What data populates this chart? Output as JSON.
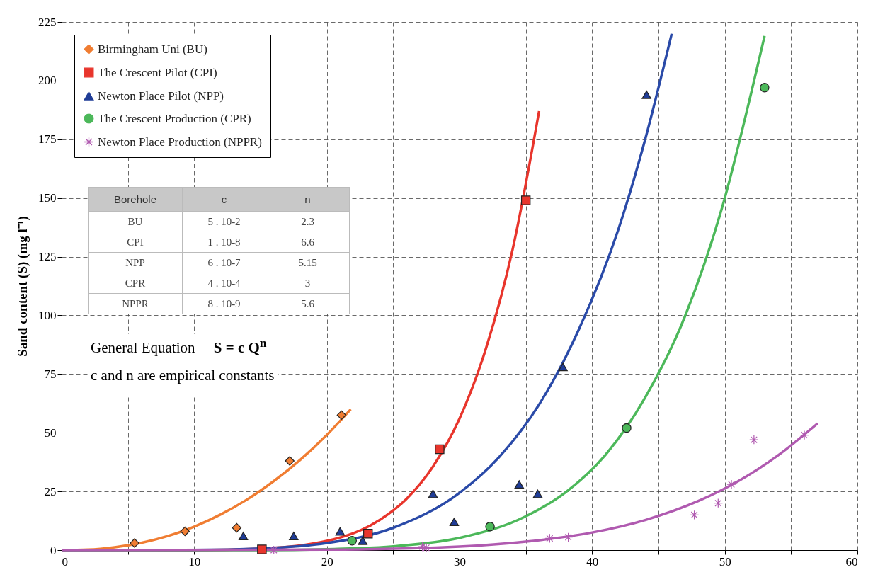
{
  "chart_data": {
    "type": "scatter",
    "ylabel": "Sand content (S) (mg l⁻¹)",
    "xlim": [
      0,
      60
    ],
    "ylim": [
      0,
      225
    ],
    "xticks": [
      0,
      {
        "value": 5,
        "label": null
      },
      10,
      {
        "value": 15,
        "label": null
      },
      20,
      {
        "value": 25,
        "label": null
      },
      30,
      {
        "value": 35,
        "label": null
      },
      40,
      {
        "value": 45,
        "label": null
      },
      50,
      {
        "value": 55,
        "label": null
      },
      60
    ],
    "yticks": [
      0,
      25,
      50,
      75,
      100,
      125,
      150,
      175,
      200,
      225
    ],
    "grid": true,
    "legend": "top left",
    "line_style": "solid",
    "series": [
      {
        "name": "Birmingham Uni (BU)",
        "color": "#f07d32",
        "marker": "diamond",
        "x": [
          5.5,
          9.3,
          13.2,
          17.2,
          21.1
        ],
        "values": [
          3,
          8,
          9.5,
          38,
          57.5
        ]
      },
      {
        "name": "The Crescent Pilot (CPI)",
        "color": "#e8352c",
        "marker": "square",
        "x": [
          15.1,
          23.1,
          28.5,
          35
        ],
        "values": [
          0.3,
          7,
          43,
          149
        ]
      },
      {
        "name": "Newton Place Pilot (NPP)",
        "color": "#1f3c96",
        "marker": "triangle",
        "x": [
          13.7,
          17.5,
          21,
          22.7,
          28,
          29.6,
          34.5,
          35.9,
          37.8,
          44.1
        ],
        "values": [
          6,
          6,
          8,
          4,
          24,
          12,
          28,
          24,
          78,
          194
        ]
      },
      {
        "name": "The Crescent Production (CPR)",
        "color": "#4cb85a",
        "marker": "circle",
        "x": [
          21.9,
          32.3,
          42.6,
          53
        ],
        "values": [
          4,
          10,
          52,
          197
        ]
      },
      {
        "name": "Newton Place Production (NPPR)",
        "color": "#b05ab0",
        "marker": "cross",
        "x": [
          16,
          27.2,
          27.5,
          36.8,
          38.2,
          47.7,
          49.5,
          50.5,
          52.2,
          56
        ],
        "values": [
          0,
          1.5,
          1,
          5,
          5.5,
          15,
          20,
          28,
          47,
          49
        ]
      },
      {
        "type": "line",
        "color": "#f07d32",
        "x": [
          0,
          2,
          4,
          6,
          8,
          10,
          12,
          14,
          16,
          18,
          20,
          21.8
        ],
        "values": [
          0,
          0.2,
          1.2,
          3.1,
          6,
          10,
          15.2,
          21.6,
          29.4,
          38.5,
          49.1,
          60
        ]
      },
      {
        "type": "line",
        "color": "#e8352c",
        "x": [
          0,
          10,
          15,
          20,
          24,
          26,
          28,
          30,
          32,
          34,
          36
        ],
        "values": [
          0,
          0,
          0.6,
          3.9,
          12.9,
          21.8,
          35.6,
          56,
          86,
          128,
          187
        ]
      },
      {
        "type": "line",
        "color": "#2a4aa8",
        "x": [
          0,
          10,
          15,
          20,
          25,
          30,
          33,
          36,
          39,
          42,
          44,
          46
        ],
        "values": [
          0,
          0.1,
          0.7,
          3,
          9.5,
          24.4,
          39.7,
          62,
          94,
          137,
          175,
          220
        ]
      },
      {
        "type": "line",
        "color": "#4cb85a",
        "x": [
          0,
          15,
          20,
          25,
          30,
          35,
          38,
          41,
          44,
          47,
          50,
          52,
          53
        ],
        "values": [
          0,
          0,
          0.4,
          1.6,
          5.2,
          14.4,
          24.6,
          40.5,
          65,
          99.6,
          150,
          195,
          219
        ]
      },
      {
        "type": "line",
        "color": "#b05ab0",
        "x": [
          0,
          20,
          30,
          35,
          40,
          44,
          48,
          51,
          54,
          57
        ],
        "values": [
          0,
          0.2,
          1.5,
          3.6,
          7.5,
          12.8,
          20.9,
          29.3,
          40.3,
          54
        ]
      }
    ],
    "annotations": [
      "Borehole",
      "c",
      "n",
      "BU",
      "5 . 10-2",
      "2.3",
      "CPI",
      "1 . 10-8",
      "6.6",
      "NPP",
      "6 . 10-7",
      "5.15",
      "CPR",
      "4 . 10-4",
      "3",
      "NPPR",
      "8 . 10-9",
      "5.6",
      "General Equation",
      "S = c Q$^{n}$",
      "c and n are empirical constants"
    ]
  }
}
